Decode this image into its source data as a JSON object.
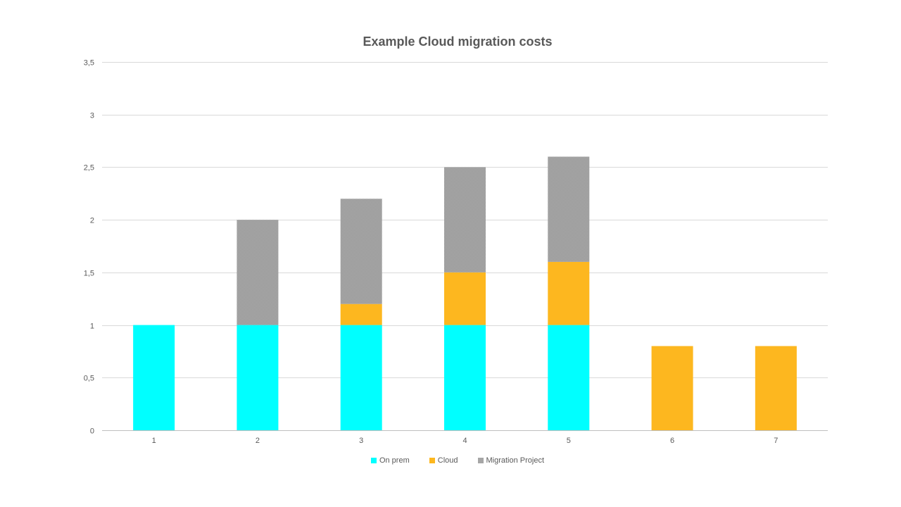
{
  "chart_data": {
    "type": "bar",
    "stacked": true,
    "title": "Example Cloud migration costs",
    "xlabel": "",
    "ylabel": "",
    "categories": [
      "1",
      "2",
      "3",
      "4",
      "5",
      "6",
      "7"
    ],
    "ylim": [
      0,
      3.5
    ],
    "yticks": [
      "0",
      "0,5",
      "1",
      "1,5",
      "2",
      "2,5",
      "3",
      "3,5"
    ],
    "ytick_values": [
      0,
      0.5,
      1,
      1.5,
      2,
      2.5,
      3,
      3.5
    ],
    "grid": true,
    "legend_position": "bottom",
    "series": [
      {
        "name": "On prem",
        "color": "#00FFFF",
        "values": [
          1,
          1,
          1,
          1,
          1,
          0,
          0
        ]
      },
      {
        "name": "Cloud",
        "color": "#FDB71F",
        "values": [
          0,
          0,
          0.2,
          0.5,
          0.6,
          0.8,
          0.8
        ]
      },
      {
        "name": "Migration Project",
        "color": "#A6A6A6",
        "pattern": "stippled",
        "values": [
          0,
          1,
          1,
          1,
          1,
          0,
          0
        ]
      }
    ]
  }
}
